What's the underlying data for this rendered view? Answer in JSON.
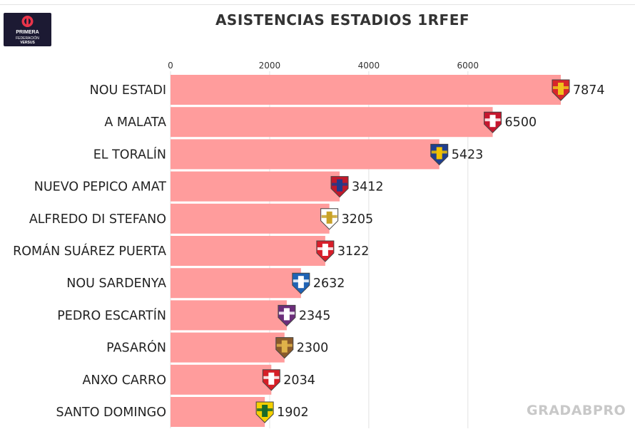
{
  "logo": {
    "line1": "PRIMERA",
    "line2": "FEDERACIÓN",
    "line3": "VERSUS"
  },
  "watermark": "GRADABPRO",
  "chart_data": {
    "type": "bar",
    "orientation": "horizontal",
    "title": "ASISTENCIAS ESTADIOS 1RFEF",
    "xlabel": "",
    "ylabel": "",
    "xlim": [
      0,
      7874
    ],
    "x_ticks": [
      0,
      2000,
      4000,
      6000
    ],
    "x_tick_labels": [
      "0",
      "2000",
      "4000",
      "6000"
    ],
    "x_axis_position": "top",
    "grid": true,
    "bar_color": "#ff9c9c",
    "categories": [
      "NOU ESTADI",
      "A MALATA",
      "EL TORALÍN",
      "NUEVO PEPICO AMAT",
      "ALFREDO DI STEFANO",
      "ROMÁN SUÁREZ PUERTA",
      "NOU SARDENYA",
      "PEDRO ESCARTÍN",
      "PASARÓN",
      "ANXO CARRO",
      "SANTO DOMINGO"
    ],
    "values": [
      7874,
      6500,
      5423,
      3412,
      3205,
      3122,
      2632,
      2345,
      2300,
      2034,
      1902
    ],
    "value_labels": [
      "7874",
      "6500",
      "5423",
      "3412",
      "3205",
      "3122",
      "2632",
      "2345",
      "2300",
      "2034",
      "1902"
    ],
    "badge_icons": [
      "club-crest-red-yellow-stripes-icon",
      "club-crest-red-white-icon",
      "club-crest-blue-yellow-icon",
      "club-crest-red-blue-stripes-icon",
      "club-crest-white-gold-icon",
      "club-crest-red-white-castle-icon",
      "club-crest-blue-white-stripes-icon",
      "club-crest-purple-white-icon",
      "club-crest-brown-gold-icon",
      "club-crest-red-white-stripes-icon",
      "club-crest-yellow-green-icon"
    ],
    "badge_colors": [
      [
        "#d8262b",
        "#f1c21b"
      ],
      [
        "#c5172e",
        "#ffffff"
      ],
      [
        "#1f3f8f",
        "#f2c200"
      ],
      [
        "#c0182a",
        "#22398a"
      ],
      [
        "#ffffff",
        "#c9a227"
      ],
      [
        "#d81e2a",
        "#ffffff"
      ],
      [
        "#1f63b5",
        "#ffffff"
      ],
      [
        "#6b2d7a",
        "#ffffff"
      ],
      [
        "#8a5a2b",
        "#e0b34a"
      ],
      [
        "#d61f26",
        "#ffffff"
      ],
      [
        "#f5d000",
        "#1a6b2a"
      ]
    ]
  }
}
